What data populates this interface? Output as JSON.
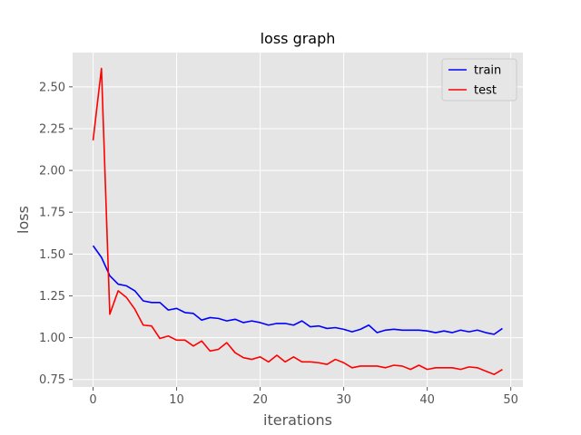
{
  "chart_data": {
    "type": "line",
    "title": "loss graph",
    "xlabel": "iterations",
    "ylabel": "loss",
    "xlim": [
      -2.45,
      51.45
    ],
    "ylim": [
      0.705,
      2.705
    ],
    "xticks": [
      0,
      10,
      20,
      30,
      40,
      50
    ],
    "yticks": [
      0.75,
      1.0,
      1.25,
      1.5,
      1.75,
      2.0,
      2.25,
      2.5
    ],
    "grid": true,
    "legend_position": "top-right",
    "x": [
      0,
      1,
      2,
      3,
      4,
      5,
      6,
      7,
      8,
      9,
      10,
      11,
      12,
      13,
      14,
      15,
      16,
      17,
      18,
      19,
      20,
      21,
      22,
      23,
      24,
      25,
      26,
      27,
      28,
      29,
      30,
      31,
      32,
      33,
      34,
      35,
      36,
      37,
      38,
      39,
      40,
      41,
      42,
      43,
      44,
      45,
      46,
      47,
      48,
      49
    ],
    "series": [
      {
        "name": "train",
        "color": "#0000ff",
        "values": [
          1.55,
          1.48,
          1.37,
          1.32,
          1.31,
          1.28,
          1.22,
          1.21,
          1.21,
          1.165,
          1.175,
          1.15,
          1.145,
          1.105,
          1.12,
          1.115,
          1.1,
          1.11,
          1.09,
          1.1,
          1.09,
          1.075,
          1.085,
          1.085,
          1.075,
          1.1,
          1.065,
          1.07,
          1.055,
          1.06,
          1.05,
          1.035,
          1.05,
          1.075,
          1.03,
          1.045,
          1.05,
          1.045,
          1.045,
          1.045,
          1.04,
          1.03,
          1.04,
          1.03,
          1.045,
          1.035,
          1.045,
          1.03,
          1.02,
          1.055
        ]
      },
      {
        "name": "test",
        "color": "#ff0000",
        "values": [
          2.18,
          2.61,
          1.14,
          1.28,
          1.24,
          1.17,
          1.075,
          1.07,
          0.995,
          1.01,
          0.985,
          0.985,
          0.95,
          0.98,
          0.92,
          0.93,
          0.97,
          0.91,
          0.88,
          0.87,
          0.885,
          0.855,
          0.895,
          0.855,
          0.885,
          0.855,
          0.855,
          0.85,
          0.84,
          0.87,
          0.85,
          0.82,
          0.83,
          0.83,
          0.83,
          0.82,
          0.835,
          0.83,
          0.81,
          0.835,
          0.81,
          0.82,
          0.82,
          0.82,
          0.81,
          0.825,
          0.82,
          0.8,
          0.78,
          0.81
        ]
      }
    ]
  }
}
